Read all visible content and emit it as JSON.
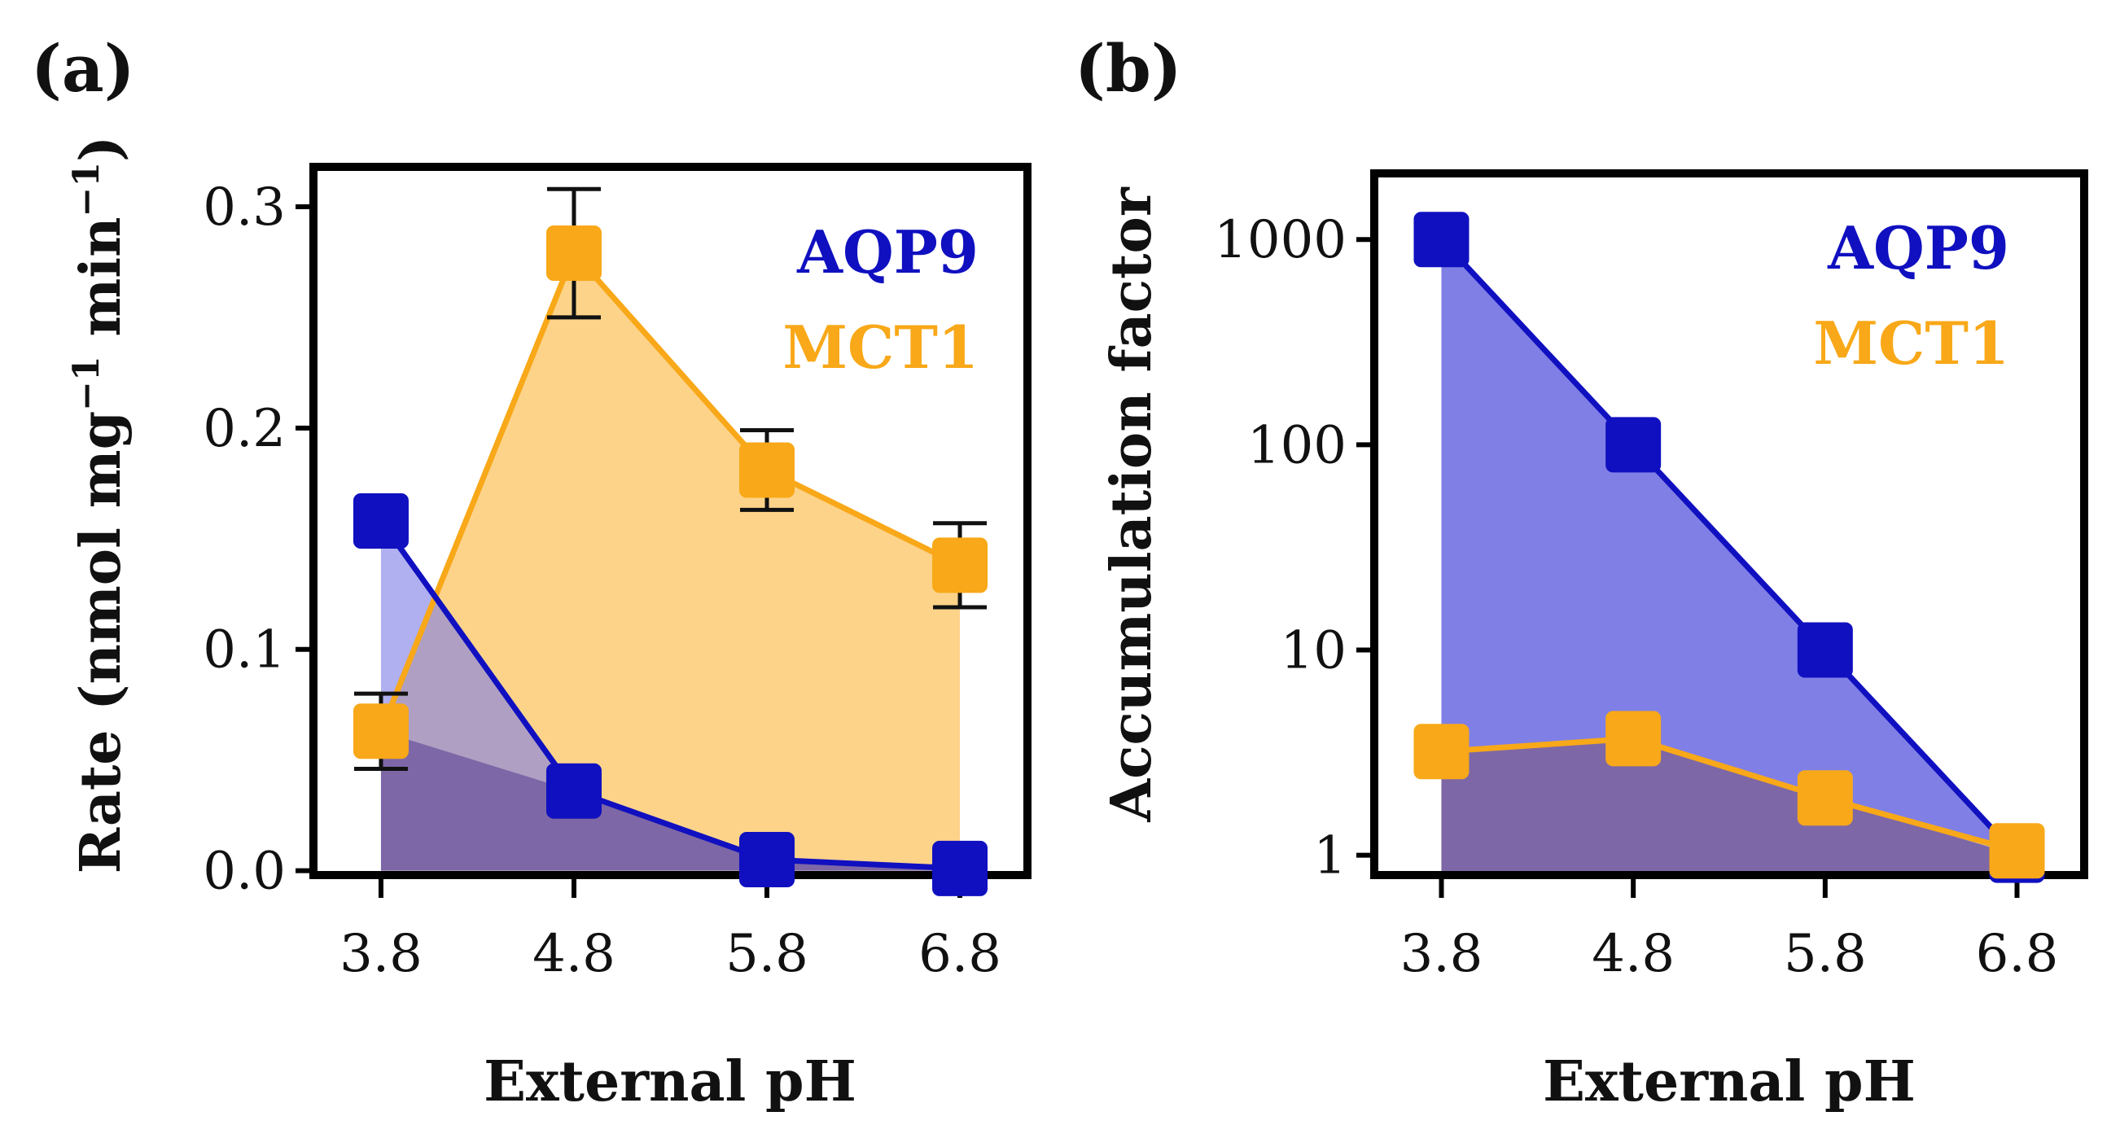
{
  "colors": {
    "aqp9": "#1010c0",
    "mct1": "#f8a818",
    "aqp9_fill": "#7f7fe6",
    "mct1_fill": "#fdd38a",
    "axis": "#000000"
  },
  "chart_data": [
    {
      "type": "line",
      "panel": "(a)",
      "xlabel": "External pH",
      "ylabel_main": "Rate (nmol mg",
      "ylabel_sup1": "−1",
      "ylabel_mid": " min",
      "ylabel_sup2": "−1",
      "ylabel_end": ")",
      "x": [
        3.8,
        4.8,
        5.8,
        6.8
      ],
      "x_tick_labels": [
        "3.8",
        "4.8",
        "5.8",
        "6.8"
      ],
      "y_ticks": [
        0.0,
        0.1,
        0.2,
        0.3
      ],
      "y_tick_labels": [
        "0.0",
        "0.1",
        "0.2",
        "0.3"
      ],
      "ylim": [
        -0.002,
        0.318
      ],
      "xlim": [
        3.45,
        7.15
      ],
      "yscale": "linear",
      "legend_position": "top-right",
      "series": [
        {
          "name": "AQP9",
          "color_key": "aqp9",
          "values": [
            0.158,
            0.036,
            0.005,
            0.001
          ],
          "err": [
            0.006,
            0.004,
            0.002,
            0.002
          ]
        },
        {
          "name": "MCT1",
          "color_key": "mct1",
          "values": [
            0.063,
            0.279,
            0.181,
            0.138
          ],
          "err": [
            0.017,
            0.029,
            0.018,
            0.019
          ]
        }
      ]
    },
    {
      "type": "line",
      "panel": "(b)",
      "xlabel": "External pH",
      "ylabel_main": "Accumulation factor",
      "x": [
        3.8,
        4.8,
        5.8,
        6.8
      ],
      "x_tick_labels": [
        "3.8",
        "4.8",
        "5.8",
        "6.8"
      ],
      "y_ticks": [
        1,
        10,
        100,
        1000
      ],
      "y_tick_labels": [
        "1",
        "10",
        "100",
        "1000"
      ],
      "ylim": [
        0.8,
        2100
      ],
      "xlim": [
        3.45,
        7.15
      ],
      "yscale": "log",
      "legend_position": "top-right",
      "series": [
        {
          "name": "AQP9",
          "color_key": "aqp9",
          "values": [
            1000,
            100,
            10,
            1
          ],
          "err": [
            0,
            0,
            0,
            0
          ]
        },
        {
          "name": "MCT1",
          "color_key": "mct1",
          "values": [
            3.2,
            3.7,
            1.9,
            1.05
          ],
          "err": [
            0.3,
            0.3,
            0.15,
            0.05
          ]
        }
      ]
    }
  ]
}
